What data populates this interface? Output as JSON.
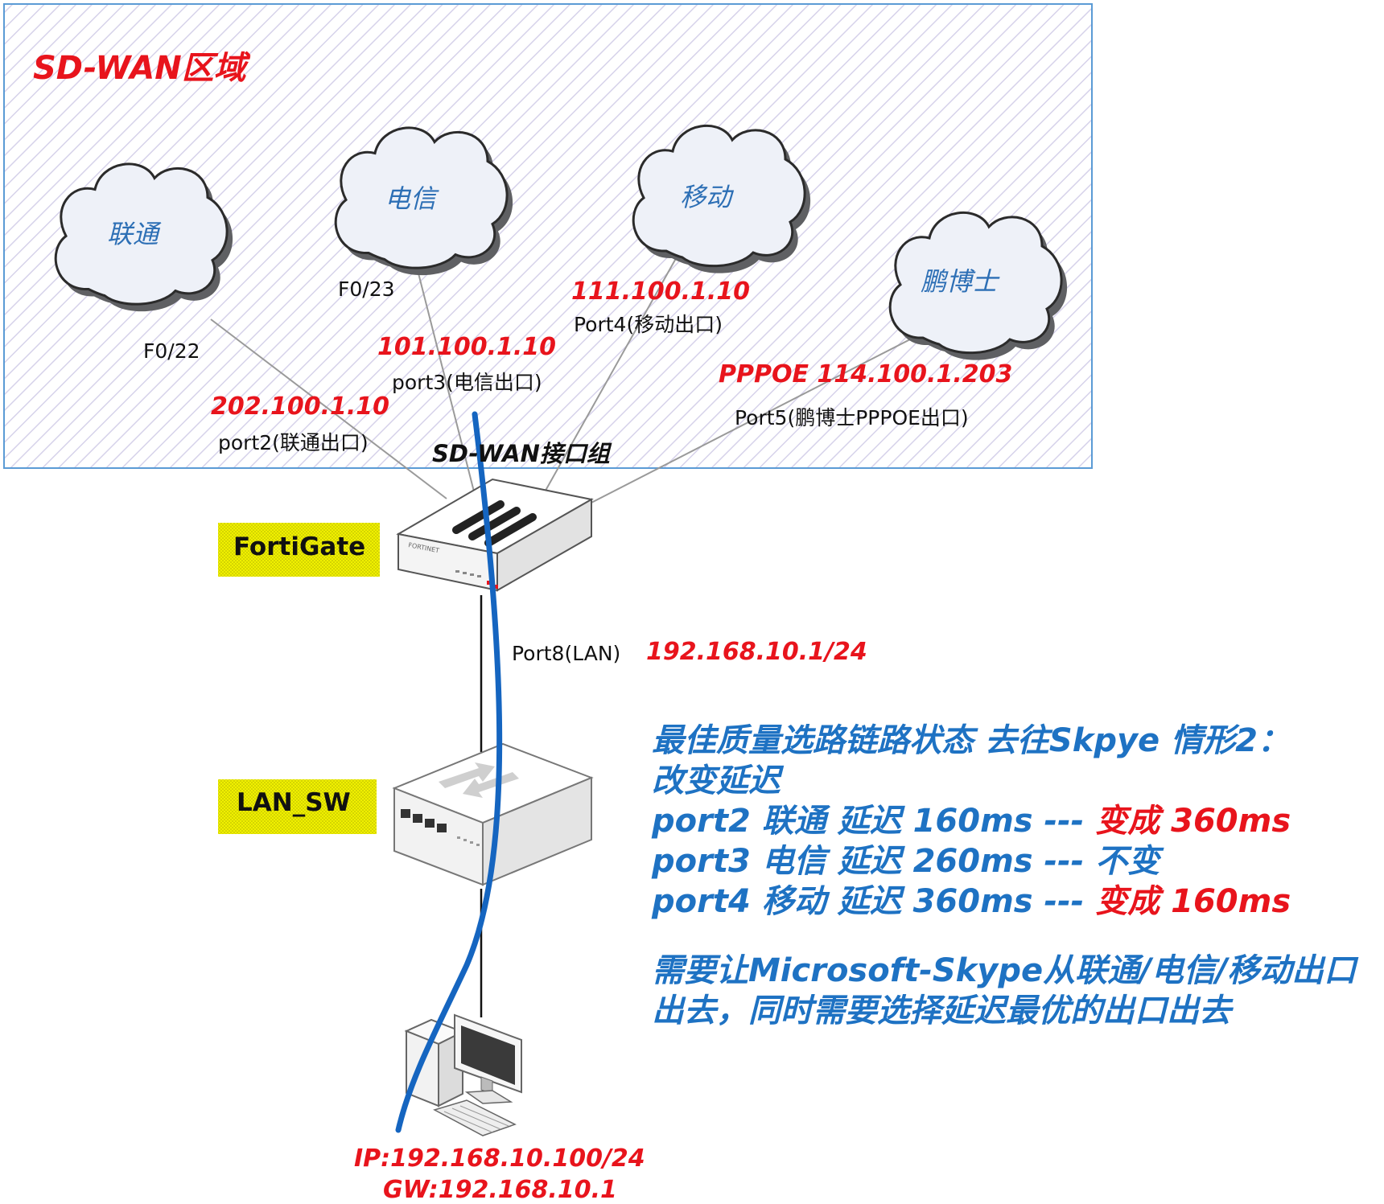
{
  "zone": {
    "title": "SD-WAN区域",
    "border_color": "#5b9bd5"
  },
  "clouds": [
    {
      "id": "unicom",
      "name": "联通"
    },
    {
      "id": "telecom",
      "name": "电信"
    },
    {
      "id": "mobile",
      "name": "移动"
    },
    {
      "id": "drpeng",
      "name": "鹏博士"
    }
  ],
  "interfaces": {
    "f022": "F0/22",
    "f023": "F0/23",
    "port2_ip": "202.100.1.10",
    "port2_label": "port2(联通出口)",
    "port3_ip": "101.100.1.10",
    "port3_label": "port3(电信出口)",
    "port4_ip": "111.100.1.10",
    "port4_label": "Port4(移动出口)",
    "port5_ip": "PPPOE 114.100.1.203",
    "port5_label": "Port5(鹏博士PPPOE出口)",
    "group_label": "SD-WAN接口组",
    "port8_label": "Port8(LAN)",
    "port8_ip": "192.168.10.1/24"
  },
  "devices": {
    "fortigate": "FortiGate",
    "lan_sw": "LAN_SW",
    "pc_ip": "IP:192.168.10.100/24",
    "pc_gw": "GW:192.168.10.1"
  },
  "note": {
    "line1": "最佳质量选路链路状态 去往Skpye 情形2：",
    "line2": "改变延迟",
    "rows": [
      {
        "text": "port2 联通 延迟 160ms  --- ",
        "change": "变成 360ms"
      },
      {
        "text": "port3 电信 延迟 260ms  --- 不变",
        "change": ""
      },
      {
        "text": "port4 移动 延迟 360ms  --- ",
        "change": "变成 160ms"
      }
    ],
    "line6": "需要让Microsoft-Skype从联通/电信/移动出口",
    "line7": "出去，同时需要选择延迟最优的出口出去"
  },
  "colors": {
    "accent_red": "#e8141c",
    "note_blue": "#1e72c3",
    "traffic_path": "#1565c0",
    "label_highlight": "#f4f400"
  }
}
